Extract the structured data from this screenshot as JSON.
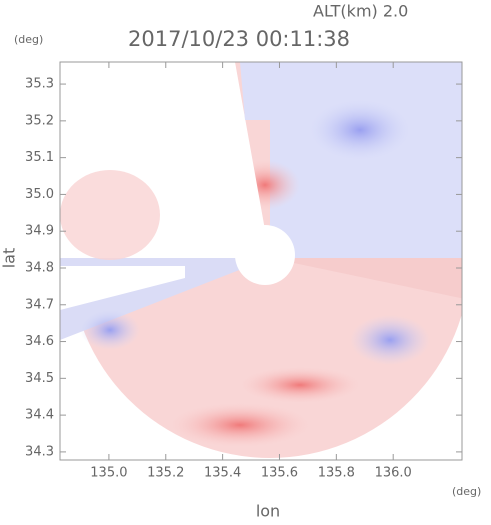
{
  "chart_data": {
    "type": "radar-map",
    "title": "2017/10/23 00:11:38",
    "subtitle": "ALT(km) 2.0",
    "x_label": "lon",
    "y_label": "lat",
    "x_unit": "(deg)",
    "y_unit": "(deg)",
    "xlim": [
      134.828,
      136.242
    ],
    "ylim": [
      34.278,
      35.36
    ],
    "xticks": [
      {
        "value": 135.0,
        "label": "135.0"
      },
      135.2,
      135.4,
      135.6,
      135.8,
      {
        "value": 136.0,
        "label": "136.0"
      }
    ],
    "yticks": [
      34.3,
      34.4,
      34.5,
      34.6,
      34.7,
      34.8,
      34.9,
      {
        "value": 35.0,
        "label": "35.0"
      },
      35.1,
      35.2,
      35.3
    ]
  }
}
